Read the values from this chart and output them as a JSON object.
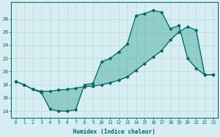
{
  "xlabel": "Humidex (Indice chaleur)",
  "background_color": "#d6eef2",
  "line_color": "#006666",
  "fill_color": "#40a898",
  "x_values": [
    0,
    1,
    2,
    3,
    4,
    5,
    6,
    7,
    8,
    9,
    10,
    11,
    12,
    13,
    14,
    15,
    16,
    17,
    18,
    19,
    20,
    21,
    22,
    23
  ],
  "y_curve1": [
    18.5,
    18.0,
    17.3,
    16.8,
    14.3,
    14.0,
    14.0,
    14.2,
    18.0,
    18.2,
    21.5,
    22.0,
    23.0,
    24.2,
    28.5,
    28.8,
    29.3,
    29.0,
    26.5,
    27.0,
    22.0,
    20.5,
    19.5,
    19.5
  ],
  "y_curve2": [
    18.5,
    18.0,
    17.3,
    17.0,
    17.0,
    17.2,
    17.3,
    17.5,
    17.7,
    17.8,
    18.0,
    18.3,
    18.7,
    19.2,
    20.2,
    21.2,
    22.2,
    23.2,
    24.8,
    26.0,
    26.8,
    26.3,
    19.5,
    19.5
  ],
  "xlim": [
    -0.5,
    23.5
  ],
  "ylim": [
    13.0,
    30.5
  ],
  "yticks": [
    14,
    16,
    18,
    20,
    22,
    24,
    26,
    28
  ],
  "xticks": [
    0,
    1,
    2,
    3,
    4,
    5,
    6,
    7,
    8,
    9,
    10,
    11,
    12,
    13,
    14,
    15,
    16,
    17,
    18,
    19,
    20,
    21,
    22,
    23
  ],
  "grid_color": "#b8d8dc",
  "marker_size": 2.2,
  "line_width": 1.0
}
